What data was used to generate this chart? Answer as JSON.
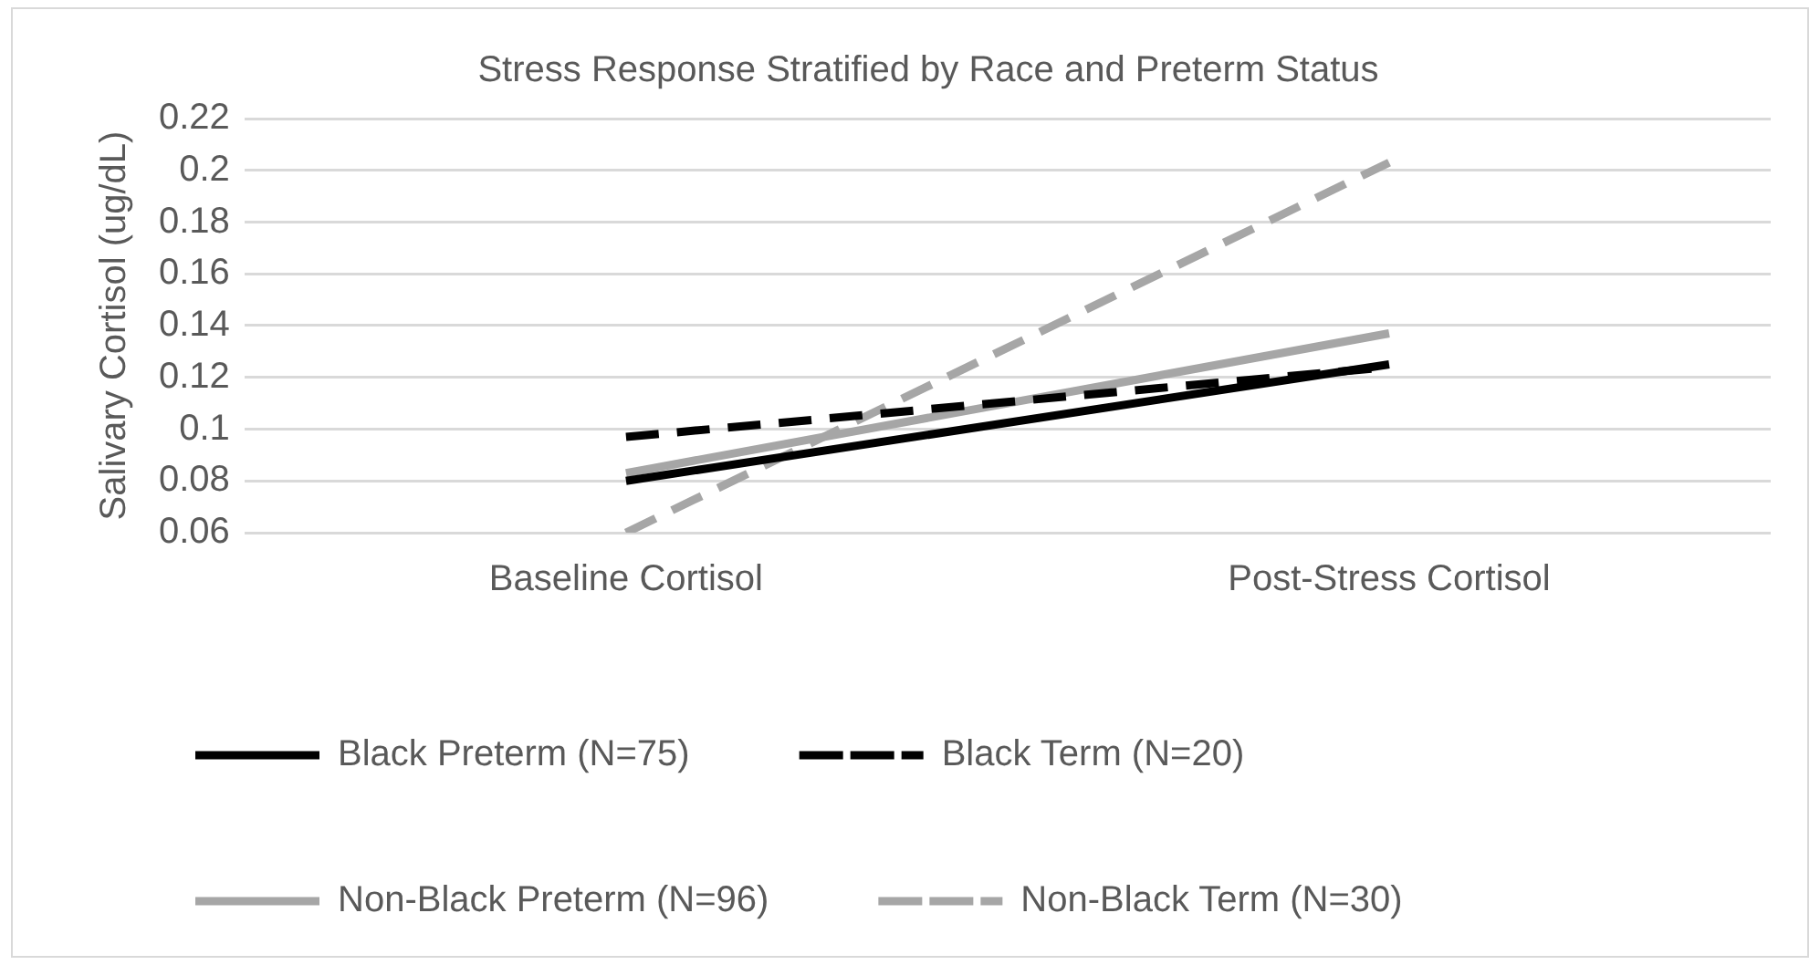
{
  "chart_data": {
    "type": "line",
    "title": "Stress Response Stratified by Race and Preterm Status",
    "ylabel": "Salivary Cortisol (ug/dL)",
    "categories": [
      "Baseline Cortisol",
      "Post-Stress Cortisol"
    ],
    "series": [
      {
        "name": "Black Preterm (N=75)",
        "color": "#000000",
        "line_style": "solid",
        "values": [
          0.08,
          0.125
        ]
      },
      {
        "name": "Black Term (N=20)",
        "color": "#000000",
        "line_style": "dashed",
        "values": [
          0.097,
          0.124
        ]
      },
      {
        "name": "Non-Black Preterm (N=96)",
        "color": "#a6a6a6",
        "line_style": "solid",
        "values": [
          0.083,
          0.137
        ]
      },
      {
        "name": "Non-Black Term (N=30)",
        "color": "#a6a6a6",
        "line_style": "dashed",
        "values": [
          0.06,
          0.203
        ]
      }
    ],
    "ylim": [
      0.06,
      0.22
    ],
    "yticks": [
      0.06,
      0.08,
      0.1,
      0.12,
      0.14,
      0.16,
      0.18,
      0.2,
      0.22
    ],
    "grid": "y",
    "legend": "bottom",
    "marker": "none"
  }
}
